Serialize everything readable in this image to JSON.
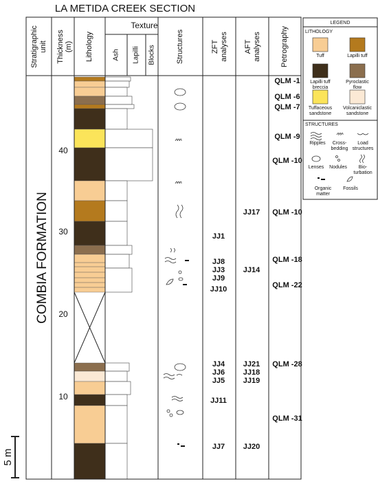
{
  "title": "LA METIDA CREEK SECTION",
  "headers": {
    "unit": [
      "Stratigraphic",
      "unit"
    ],
    "thickness": [
      "Thickness",
      "(m)"
    ],
    "lithology": "Lithology",
    "texture": "Texture",
    "texture_sub": [
      "Ash",
      "Lapilli",
      "Blocks"
    ],
    "structures": "Structures",
    "zft": [
      "ZFT",
      "analyses"
    ],
    "aft": [
      "AFT",
      "analyses"
    ],
    "petrography": "Petrography"
  },
  "formation": "COMBIA FORMATION",
  "thickness_ticks": [
    40,
    30,
    20,
    10
  ],
  "scale": "5 m",
  "zft": [
    "JJ1",
    "JJ8",
    "JJ3",
    "JJ9",
    "JJ10",
    "JJ4",
    "JJ6",
    "JJ5",
    "JJ11",
    "JJ7"
  ],
  "aft": [
    "JJ17",
    "JJ14",
    "JJ21",
    "JJ18",
    "JJ19",
    "JJ20"
  ],
  "petrography": [
    "QLM -1",
    "QLM -6",
    "QLM -7",
    "QLM -9",
    "QLM -10",
    "QLM -10",
    "QLM -18",
    "QLM -22",
    "QLM -28",
    "QLM -31"
  ],
  "legend": {
    "title": "LEGEND",
    "lithology_title": "LITHOLOGY",
    "lithology": [
      {
        "lines": [
          "Tuff"
        ],
        "color": "#f8cd94"
      },
      {
        "lines": [
          "Lapilli tuff"
        ],
        "color": "#b47a1e"
      },
      {
        "lines": [
          "Lapilli tuff",
          "breccia"
        ],
        "color": "#3f2f1b"
      },
      {
        "lines": [
          "Pyroclastic",
          "flow"
        ],
        "color": "#8b6e4e"
      },
      {
        "lines": [
          "Tuffaceous",
          "sandstone"
        ],
        "color": "#fbe45a"
      },
      {
        "lines": [
          "Volcaniclastic",
          "sandstone"
        ],
        "color": "#fbe9d5"
      }
    ],
    "structures_title": "STRUCTURES",
    "structures": [
      [
        "Ripples"
      ],
      [
        "Cross-",
        "bedding"
      ],
      [
        "Load",
        "structures"
      ],
      [
        "Lenses"
      ],
      [
        "Nodules"
      ],
      [
        "Bio-",
        "turbation"
      ],
      [
        "Organic",
        "matter"
      ],
      [
        "Fossils"
      ]
    ]
  }
}
